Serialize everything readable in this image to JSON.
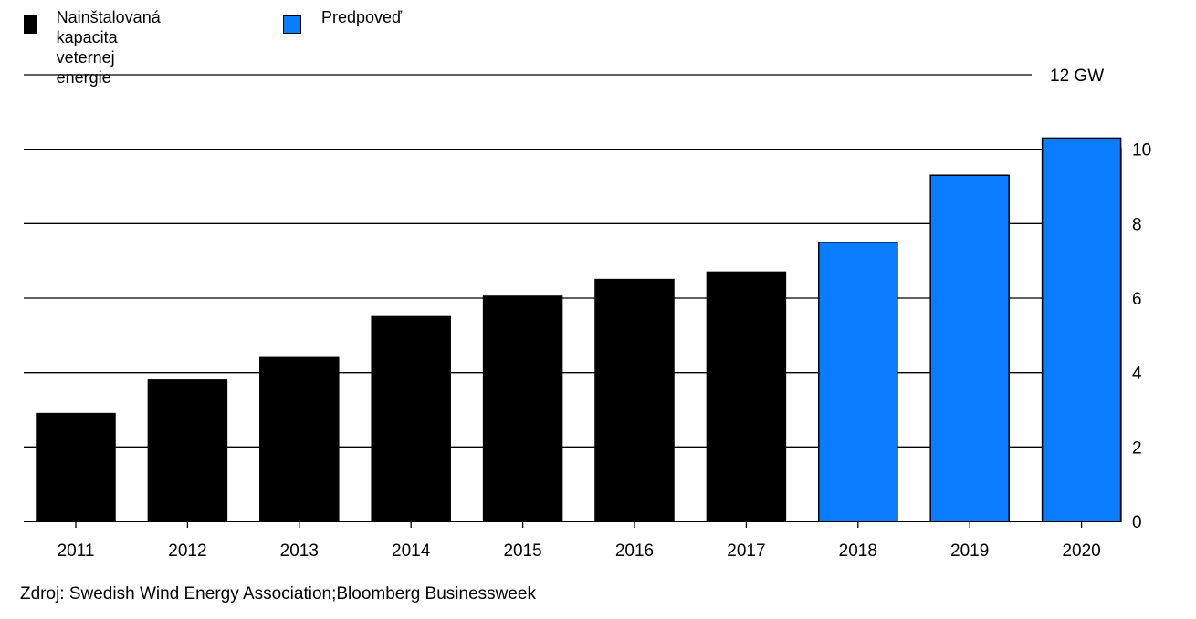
{
  "legend": {
    "installed": "Nainštalovaná kapacita\nveternej energie",
    "forecast": "Predpoveď"
  },
  "colors": {
    "installed": "#000000",
    "forecast": "#0a7cff",
    "gridline": "#000000"
  },
  "source": "Zdroj: Swedish Wind Energy Association;Bloomberg Businessweek",
  "chart_data": {
    "type": "bar",
    "categories": [
      "2011",
      "2012",
      "2013",
      "2014",
      "2015",
      "2016",
      "2017",
      "2018",
      "2019",
      "2020"
    ],
    "series": [
      {
        "name": "Nainštalovaná kapacita veternej energie",
        "values": [
          2.9,
          3.8,
          4.4,
          5.5,
          6.05,
          6.5,
          6.7,
          null,
          null,
          null
        ]
      },
      {
        "name": "Predpoveď",
        "values": [
          null,
          null,
          null,
          null,
          null,
          null,
          null,
          7.5,
          9.3,
          10.3
        ]
      }
    ],
    "ylim": [
      0,
      12
    ],
    "yticks": [
      "0",
      "2",
      "4",
      "6",
      "8",
      "10",
      "12 GW"
    ],
    "ytick_values": [
      0,
      2,
      4,
      6,
      8,
      10,
      12
    ],
    "grid": true,
    "legend_position": "top-left",
    "y_axis_side": "right"
  }
}
